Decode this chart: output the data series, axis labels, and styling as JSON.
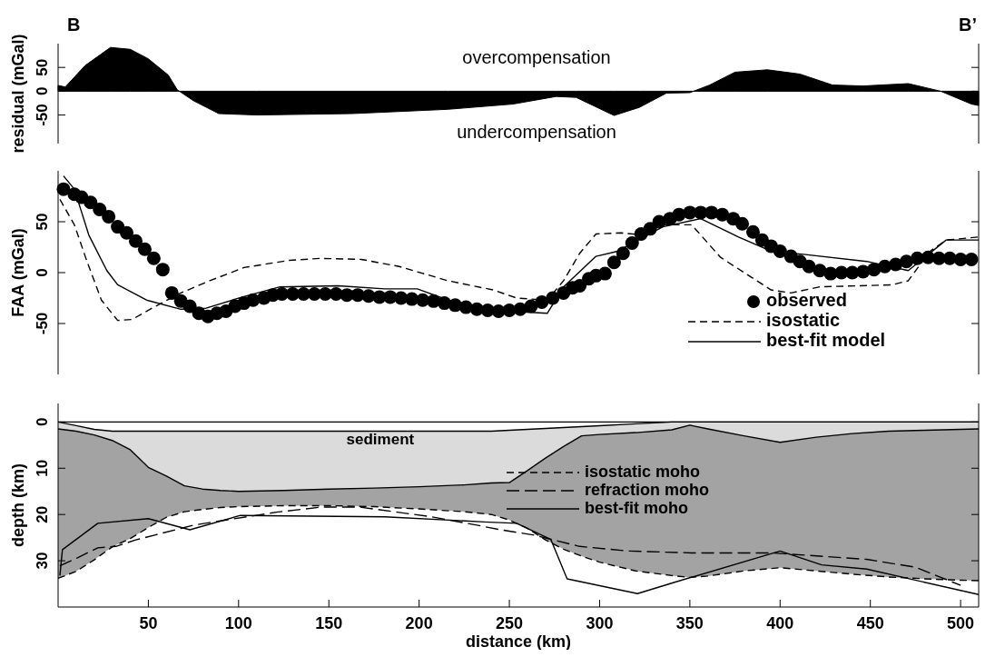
{
  "chart_data": [
    {
      "type": "area",
      "ylabel": "residual (mGal)",
      "xlim": [
        0,
        510
      ],
      "ylim": [
        -110,
        100
      ],
      "yticks": [
        -50,
        0,
        50
      ],
      "tick_labels": "y",
      "annotations": [
        "B",
        "B’",
        "overcompensation",
        "undercompensation"
      ],
      "series": [
        {
          "color": "#000000",
          "x": [
            0,
            4,
            15,
            29,
            40,
            50,
            61,
            66,
            75,
            89,
            110,
            163,
            216,
            252,
            276,
            287,
            308,
            322,
            337,
            350,
            361,
            375,
            393,
            411,
            429,
            446,
            471,
            489,
            506,
            510
          ],
          "values": [
            12,
            9,
            54,
            92,
            88,
            68,
            34,
            3,
            -20,
            -47,
            -50,
            -47,
            -38,
            -27,
            -11,
            -13,
            -51,
            -34,
            -4,
            -3,
            13,
            40,
            45,
            36,
            13,
            11,
            16,
            0,
            -27,
            -30
          ]
        }
      ]
    },
    {
      "type": "line",
      "ylabel": "FAA (mGal)",
      "xlim": [
        0,
        510
      ],
      "ylim": [
        -100,
        100
      ],
      "yticks": [
        -50,
        0,
        50
      ],
      "tick_labels": "y",
      "legend": "bottom right",
      "series": [
        {
          "name": "observed",
          "type": "scatter",
          "marker": "circle",
          "color": "#000000",
          "x": [
            3,
            9,
            13,
            18,
            23,
            28,
            33,
            38,
            43,
            48,
            53,
            58,
            63,
            68,
            73,
            78,
            83,
            88,
            93,
            98,
            103,
            108,
            114,
            119,
            124,
            130,
            136,
            142,
            148,
            154,
            160,
            166,
            172,
            178,
            184,
            190,
            196,
            202,
            208,
            214,
            220,
            226,
            232,
            238,
            244,
            250,
            256,
            262,
            268,
            274,
            280,
            285,
            289,
            294,
            298,
            303,
            308,
            313,
            318,
            323,
            328,
            333,
            339,
            344,
            350,
            356,
            362,
            368,
            374,
            379,
            385,
            390,
            395,
            400,
            406,
            411,
            416,
            422,
            428,
            434,
            440,
            446,
            452,
            458,
            464,
            470,
            476,
            482,
            488,
            494,
            500,
            506
          ],
          "values": [
            82,
            77,
            74,
            69,
            62,
            55,
            45,
            39,
            31,
            23,
            14,
            3,
            -20,
            -28,
            -33,
            -40,
            -43,
            -40,
            -38,
            -33,
            -30,
            -27,
            -25,
            -22,
            -21,
            -21,
            -21,
            -21,
            -21,
            -21,
            -22,
            -22,
            -23,
            -24,
            -24,
            -25,
            -26,
            -27,
            -28,
            -30,
            -32,
            -34,
            -36,
            -37,
            -38,
            -37,
            -36,
            -33,
            -29,
            -25,
            -20,
            -15,
            -13,
            -6,
            -3,
            -1,
            10,
            19,
            29,
            38,
            43,
            50,
            53,
            57,
            59,
            59,
            59,
            57,
            53,
            48,
            40,
            32,
            26,
            21,
            16,
            11,
            6,
            2,
            -1,
            0,
            0,
            1,
            3,
            6,
            8,
            11,
            14,
            15,
            14,
            14,
            13,
            13
          ]
        },
        {
          "name": "isostatic",
          "line_style": "dashed",
          "color": "#000000",
          "x": [
            1,
            9,
            16,
            24,
            33,
            41,
            54,
            68,
            84,
            103,
            128,
            145,
            168,
            189,
            216,
            241,
            254,
            271,
            280,
            289,
            298,
            312,
            324,
            335,
            351,
            367,
            395,
            406,
            422,
            462,
            471,
            483,
            492,
            510
          ],
          "values": [
            72,
            47,
            11,
            -27,
            -47,
            -46,
            -33,
            -20,
            -8,
            5,
            12,
            14,
            13,
            6,
            -8,
            -17,
            -25,
            -27,
            -8,
            19,
            38,
            39,
            37,
            47,
            47,
            15,
            -17,
            -20,
            -14,
            -12,
            -8,
            21,
            32,
            35
          ]
        },
        {
          "name": "best-fit model",
          "line_style": "solid",
          "color": "#000000",
          "x": [
            3,
            9,
            17,
            27,
            33,
            49,
            68,
            82,
            102,
            123,
            155,
            181,
            199,
            216,
            241,
            271,
            280,
            298,
            310,
            335,
            356,
            377,
            395,
            413,
            448,
            471,
            492,
            510
          ],
          "values": [
            95,
            82,
            37,
            2,
            -12,
            -27,
            -36,
            -35,
            -24,
            -14,
            -13,
            -16,
            -16,
            -27,
            -37,
            -40,
            -14,
            16,
            21,
            45,
            53,
            35,
            21,
            18,
            11,
            2,
            32,
            32
          ]
        }
      ]
    },
    {
      "type": "line",
      "xlabel": "distance (km)",
      "ylabel": "depth (km)",
      "xlim": [
        0,
        510
      ],
      "ylim": [
        40,
        -4
      ],
      "xticks": [
        50,
        100,
        150,
        200,
        250,
        300,
        350,
        400,
        450,
        500
      ],
      "yticks": [
        0,
        10,
        20,
        30
      ],
      "legend": "right",
      "annotations": [
        "sediment"
      ],
      "ref_lines": [
        {
          "axis": "y",
          "value": 0,
          "color": "#000000"
        }
      ],
      "x": [
        0,
        10,
        20,
        30,
        40,
        50,
        60,
        70,
        80,
        90,
        100,
        125,
        150,
        175,
        200,
        225,
        240,
        250,
        260,
        270,
        280,
        290,
        300,
        320,
        340,
        350,
        360,
        380,
        400,
        420,
        440,
        460,
        480,
        500,
        510
      ],
      "series": [
        {
          "color": "#000000",
          "line_style": "solid",
          "values": [
            0,
            0.8,
            1.6,
            2,
            2,
            2,
            2,
            2,
            2,
            2,
            2,
            2,
            2,
            2,
            2,
            2,
            2,
            1.8,
            1.6,
            1.4,
            1.2,
            1,
            0.8,
            0.4,
            0,
            0,
            0,
            0,
            0,
            0,
            0,
            0,
            0,
            0,
            0
          ],
          "lower": [
            0,
            0.8,
            1.6,
            2,
            2,
            2,
            2,
            2,
            2,
            2,
            2,
            2,
            2,
            2,
            2,
            2,
            2,
            1.8,
            1.6,
            1.4,
            1.2,
            1,
            0.8,
            0.4,
            0,
            0,
            0,
            0,
            0,
            0,
            0,
            0,
            0,
            0,
            0
          ],
          "upper": [
            1.5,
            2,
            2.8,
            4,
            6,
            9.8,
            11.7,
            13.8,
            14.5,
            14.8,
            15,
            14.8,
            14.5,
            14.3,
            14,
            13.6,
            13.2,
            13.1,
            10.5,
            7.8,
            5.3,
            3,
            2.7,
            2.3,
            1.7,
            0.7,
            1.5,
            3,
            4.4,
            3.3,
            2.5,
            2,
            1.8,
            1.6,
            1.5
          ]
        },
        {
          "color": "#000000",
          "line_style": "solid",
          "values": [
            1.5,
            2,
            2.8,
            4,
            6,
            9.8,
            11.7,
            13.8,
            14.5,
            14.8,
            15,
            14.8,
            14.5,
            14.3,
            14,
            13.6,
            13.2,
            13.1,
            10.5,
            7.8,
            5.3,
            3,
            2.7,
            2.3,
            1.7,
            0.7,
            1.5,
            3,
            4.4,
            3.3,
            2.5,
            2,
            1.8,
            1.6,
            1.5
          ]
        },
        {
          "name": "isostatic moho",
          "color": "#000000",
          "line_style": "dashed",
          "values": [
            33.8,
            32.3,
            29.8,
            27,
            25.2,
            22.8,
            20.6,
            19.4,
            18.9,
            18.5,
            18.3,
            18.1,
            18.1,
            18.3,
            18.8,
            19.4,
            20,
            21.2,
            23,
            25.5,
            27.5,
            29,
            30.3,
            32.2,
            33.2,
            33.6,
            33.3,
            32.2,
            31.5,
            32.2,
            32.9,
            33.5,
            33.9,
            34.2,
            34.3
          ],
          "lower": [
            1.5,
            2,
            2.8,
            4,
            6,
            9.8,
            11.7,
            13.8,
            14.5,
            14.8,
            15,
            14.8,
            14.5,
            14.3,
            14,
            13.6,
            13.2,
            13.1,
            10.5,
            7.8,
            5.3,
            3,
            2.7,
            2.3,
            1.7,
            0.7,
            1.5,
            3,
            4.4,
            3.3,
            2.5,
            2,
            1.8,
            1.6,
            1.5
          ],
          "upper": [
            33.8,
            32.3,
            29.8,
            27,
            25.2,
            22.8,
            20.6,
            19.4,
            18.9,
            18.5,
            18.3,
            18.1,
            18.1,
            18.3,
            18.8,
            19.4,
            20,
            21.2,
            23,
            25.5,
            27.5,
            29,
            30.3,
            32.2,
            33.2,
            33.6,
            33.3,
            32.2,
            31.5,
            32.2,
            32.9,
            33.5,
            33.9,
            34.2,
            34.3
          ]
        },
        {
          "name": "refraction moho",
          "color": "#000000",
          "line_style": "dashed",
          "x": [
            1,
            11,
            22,
            32,
            43,
            54,
            68,
            75,
            93,
            121,
            146,
            167,
            188,
            207,
            232,
            245,
            263,
            289,
            316,
            351,
            395,
            422,
            448,
            475,
            500
          ],
          "values": [
            31.1,
            29.3,
            27.2,
            26.9,
            25.5,
            24.4,
            23,
            22.3,
            21.2,
            19.5,
            18.4,
            18.4,
            19.5,
            20.5,
            22.3,
            23.3,
            24.4,
            26.9,
            27.9,
            28.3,
            28.3,
            29,
            29.7,
            31.4,
            35.3
          ]
        },
        {
          "name": "best-fit moho",
          "color": "#000000",
          "line_style": "solid",
          "x": [
            1,
            2.4,
            22,
            50,
            73,
            101,
            181,
            236,
            254,
            273,
            282,
            321,
            342,
            400,
            423,
            448,
            510
          ],
          "values": [
            33.2,
            27.6,
            21.9,
            20.9,
            23.3,
            20.2,
            20.5,
            21.6,
            21.9,
            25.4,
            33.9,
            37.1,
            34.6,
            27.9,
            30.9,
            31.8,
            37.3
          ]
        }
      ]
    }
  ]
}
